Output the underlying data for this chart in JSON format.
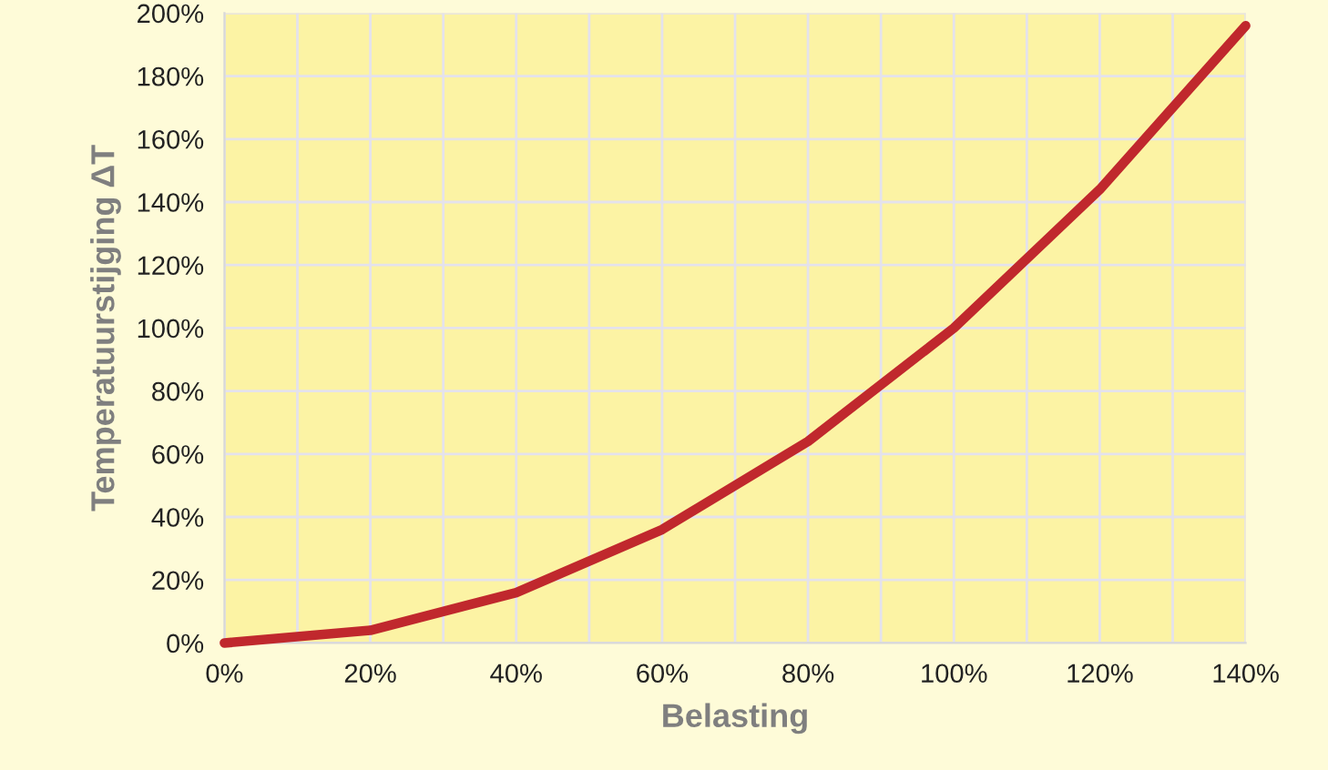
{
  "chart_data": {
    "type": "line",
    "xlabel": "Belasting",
    "ylabel": "Temperatuurstijging ΔT",
    "x": [
      0,
      20,
      40,
      60,
      80,
      100,
      120,
      140
    ],
    "series": [
      {
        "color": "#c0282d",
        "values": [
          0,
          4,
          16,
          36,
          64,
          100,
          144,
          196
        ]
      }
    ],
    "xlim": [
      0,
      140
    ],
    "ylim": [
      0,
      200
    ],
    "xticks": [
      {
        "value": 0,
        "label": "0%"
      },
      {
        "value": 10,
        "label": null
      },
      {
        "value": 20,
        "label": "20%"
      },
      {
        "value": 30,
        "label": null
      },
      {
        "value": 40,
        "label": "40%"
      },
      {
        "value": 50,
        "label": null
      },
      {
        "value": 60,
        "label": "60%"
      },
      {
        "value": 70,
        "label": null
      },
      {
        "value": 80,
        "label": "80%"
      },
      {
        "value": 90,
        "label": null
      },
      {
        "value": 100,
        "label": "100%"
      },
      {
        "value": 110,
        "label": null
      },
      {
        "value": 120,
        "label": "120%"
      },
      {
        "value": 130,
        "label": null
      },
      {
        "value": 140,
        "label": "140%"
      }
    ],
    "yticks": [
      {
        "value": 0,
        "label": "0%"
      },
      {
        "value": 20,
        "label": "20%"
      },
      {
        "value": 40,
        "label": "40%"
      },
      {
        "value": 60,
        "label": "60%"
      },
      {
        "value": 80,
        "label": "80%"
      },
      {
        "value": 100,
        "label": "100%"
      },
      {
        "value": 120,
        "label": "120%"
      },
      {
        "value": 140,
        "label": "140%"
      },
      {
        "value": 160,
        "label": "160%"
      },
      {
        "value": 180,
        "label": "180%"
      },
      {
        "value": 200,
        "label": "200%"
      }
    ],
    "grid": true,
    "marker": "none",
    "line_style": "solid"
  }
}
